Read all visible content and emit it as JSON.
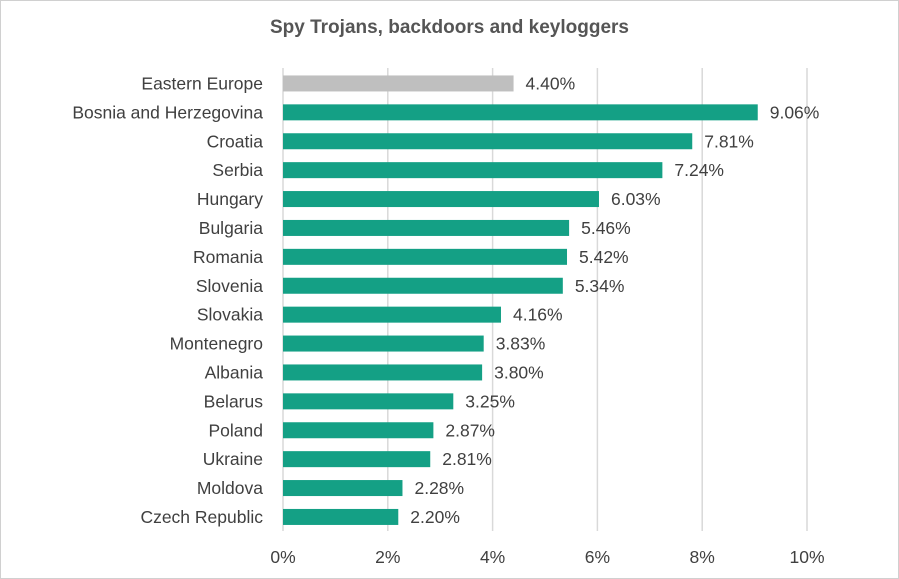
{
  "chart_data": {
    "type": "bar",
    "orientation": "horizontal",
    "title": "Spy Trojans, backdoors and keyloggers",
    "categories": [
      "Eastern Europe",
      "Bosnia and Herzegovina",
      "Croatia",
      "Serbia",
      "Hungary",
      "Bulgaria",
      "Romania",
      "Slovenia",
      "Slovakia",
      "Montenegro",
      "Albania",
      "Belarus",
      "Poland",
      "Ukraine",
      "Moldova",
      "Czech Republic"
    ],
    "values": [
      4.4,
      9.06,
      7.81,
      7.24,
      6.03,
      5.46,
      5.42,
      5.34,
      4.16,
      3.83,
      3.8,
      3.25,
      2.87,
      2.81,
      2.28,
      2.2
    ],
    "value_labels": [
      "4.40%",
      "9.06%",
      "7.81%",
      "7.24%",
      "6.03%",
      "5.46%",
      "5.42%",
      "5.34%",
      "4.16%",
      "3.83%",
      "3.80%",
      "3.25%",
      "2.87%",
      "2.81%",
      "2.28%",
      "2.20%"
    ],
    "xlim": [
      0,
      10
    ],
    "x_ticks": [
      "0%",
      "2%",
      "4%",
      "6%",
      "8%",
      "10%"
    ],
    "grid": "vertical",
    "legend": "none",
    "colors": {
      "highlight": "#bfbfbf",
      "bar": "#14a085",
      "grid": "#d9d9d9",
      "text": "#404040",
      "title": "#555555"
    }
  }
}
